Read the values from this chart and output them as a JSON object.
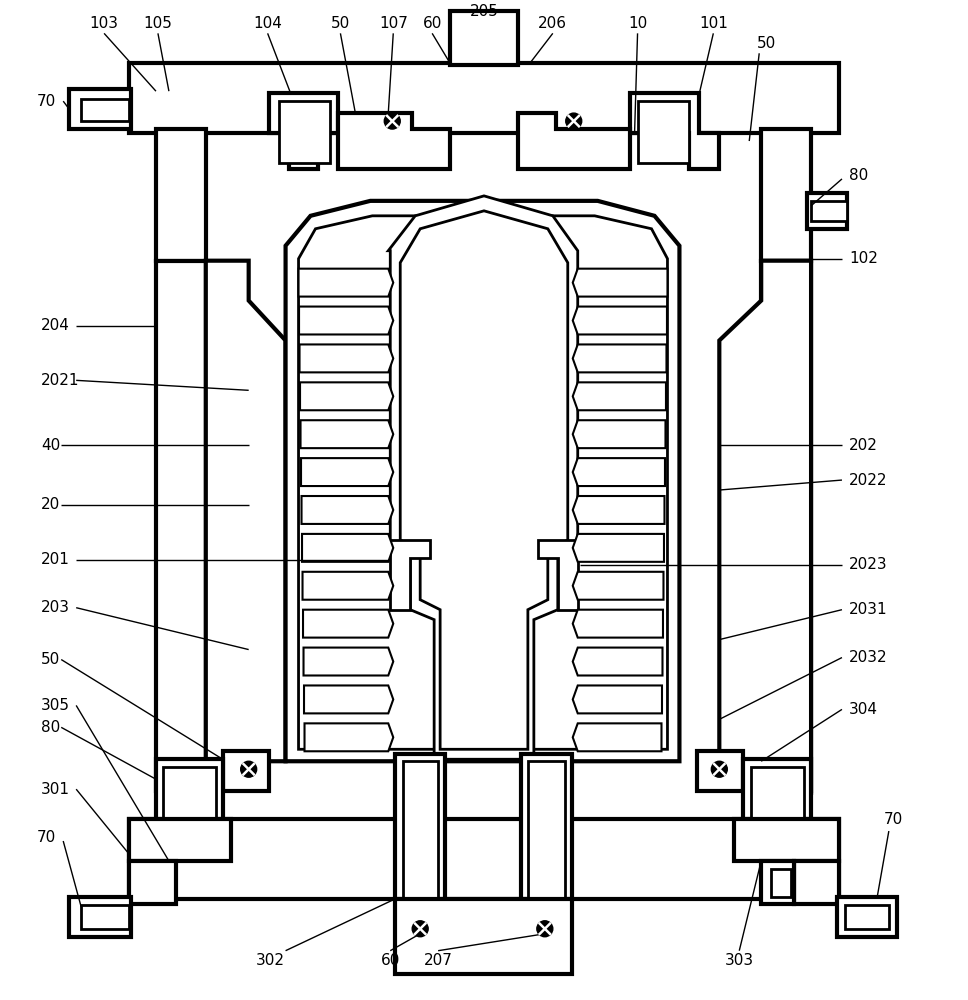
{
  "bg_color": "#ffffff",
  "lw1": 3.0,
  "lw2": 2.0,
  "lw3": 1.5,
  "lw_ann": 1.0
}
